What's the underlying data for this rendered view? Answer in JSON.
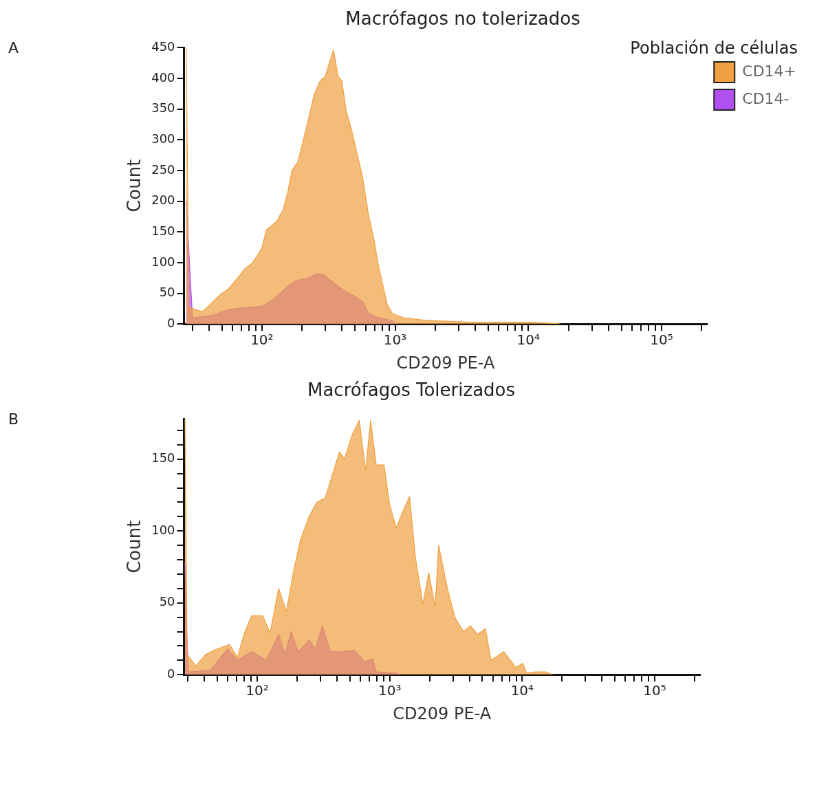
{
  "chart_data": [
    {
      "type": "area",
      "title": "Macrófagos no tolerizados",
      "annotations": [
        "A"
      ],
      "xlabel": "CD209 PE-A",
      "ylabel": "Count",
      "log": "x",
      "legend": "top right",
      "legend_title": "Población de células",
      "xlim": [
        26,
        220000
      ],
      "xticks": [
        {
          "value": 30,
          "label": null
        },
        {
          "value": 40,
          "label": null
        },
        {
          "value": 50,
          "label": null
        },
        {
          "value": 60,
          "label": null
        },
        {
          "value": 70,
          "label": null
        },
        {
          "value": 80,
          "label": null
        },
        {
          "value": 90,
          "label": null
        },
        {
          "value": 100,
          "label": "10²"
        },
        {
          "value": 200,
          "label": null
        },
        {
          "value": 300,
          "label": null
        },
        {
          "value": 400,
          "label": null
        },
        {
          "value": 500,
          "label": null
        },
        {
          "value": 600,
          "label": null
        },
        {
          "value": 700,
          "label": null
        },
        {
          "value": 800,
          "label": null
        },
        {
          "value": 900,
          "label": null
        },
        {
          "value": 1000,
          "label": "10³"
        },
        {
          "value": 2000,
          "label": null
        },
        {
          "value": 3000,
          "label": null
        },
        {
          "value": 4000,
          "label": null
        },
        {
          "value": 5000,
          "label": null
        },
        {
          "value": 6000,
          "label": null
        },
        {
          "value": 7000,
          "label": null
        },
        {
          "value": 8000,
          "label": null
        },
        {
          "value": 9000,
          "label": null
        },
        {
          "value": 10000,
          "label": "10⁴"
        },
        {
          "value": 20000,
          "label": null
        },
        {
          "value": 30000,
          "label": null
        },
        {
          "value": 40000,
          "label": null
        },
        {
          "value": 50000,
          "label": null
        },
        {
          "value": 60000,
          "label": null
        },
        {
          "value": 70000,
          "label": null
        },
        {
          "value": 80000,
          "label": null
        },
        {
          "value": 90000,
          "label": null
        },
        {
          "value": 100000,
          "label": "10⁵"
        },
        {
          "value": 200000,
          "label": null
        }
      ],
      "ylim": [
        0,
        450
      ],
      "yticks": [
        0,
        50,
        100,
        150,
        200,
        250,
        300,
        350,
        400,
        450
      ],
      "series": [
        {
          "name": "CD14+",
          "color": "#f0a040",
          "x": [
            27,
            28.3,
            35.6,
            44.3,
            49.2,
            56,
            61.2,
            67.9,
            75.3,
            84.6,
            91.4,
            100,
            108,
            118,
            129,
            144,
            157,
            168,
            186,
            203,
            222,
            247,
            274,
            299,
            319,
            345,
            373,
            398,
            430,
            470,
            514,
            570,
            632,
            692,
            748,
            809,
            874,
            955,
            1160,
            1710,
            3700,
            10400,
            15300,
            17400
          ],
          "values": [
            450,
            27,
            20,
            39,
            49,
            57,
            67,
            79,
            91,
            99,
            110,
            124,
            153,
            160,
            167,
            186,
            217,
            250,
            264,
            296,
            331,
            374,
            396,
            403,
            424,
            446,
            403,
            396,
            346,
            317,
            281,
            239,
            177,
            139,
            96,
            63,
            31,
            17,
            10,
            6,
            3,
            3,
            1,
            0
          ]
        },
        {
          "name": "CD14-",
          "color": "#b050f0",
          "x": [
            27,
            30.1,
            42.2,
            57.4,
            80.3,
            100,
            124,
            153,
            183,
            217,
            253,
            288,
            332,
            398,
            489,
            570,
            632,
            758,
            931,
            1020
          ],
          "values": [
            200,
            10,
            14,
            24,
            27,
            29,
            41,
            60,
            71,
            74,
            81,
            81,
            70,
            57,
            46,
            36,
            17,
            10,
            6,
            0
          ]
        }
      ]
    },
    {
      "type": "area",
      "title": "Macrófagos Tolerizados",
      "annotations": [
        "B"
      ],
      "xlabel": "CD209 PE-A",
      "ylabel": "Count",
      "log": "x",
      "legend": false,
      "xlim": [
        28,
        220000
      ],
      "xticks": [
        {
          "value": 30,
          "label": null
        },
        {
          "value": 40,
          "label": null
        },
        {
          "value": 50,
          "label": null
        },
        {
          "value": 60,
          "label": null
        },
        {
          "value": 70,
          "label": null
        },
        {
          "value": 80,
          "label": null
        },
        {
          "value": 90,
          "label": null
        },
        {
          "value": 100,
          "label": "10²"
        },
        {
          "value": 200,
          "label": null
        },
        {
          "value": 300,
          "label": null
        },
        {
          "value": 400,
          "label": null
        },
        {
          "value": 500,
          "label": null
        },
        {
          "value": 600,
          "label": null
        },
        {
          "value": 700,
          "label": null
        },
        {
          "value": 800,
          "label": null
        },
        {
          "value": 900,
          "label": null
        },
        {
          "value": 1000,
          "label": "10³"
        },
        {
          "value": 2000,
          "label": null
        },
        {
          "value": 3000,
          "label": null
        },
        {
          "value": 4000,
          "label": null
        },
        {
          "value": 5000,
          "label": null
        },
        {
          "value": 6000,
          "label": null
        },
        {
          "value": 7000,
          "label": null
        },
        {
          "value": 8000,
          "label": null
        },
        {
          "value": 9000,
          "label": null
        },
        {
          "value": 10000,
          "label": "10⁴"
        },
        {
          "value": 20000,
          "label": null
        },
        {
          "value": 30000,
          "label": null
        },
        {
          "value": 40000,
          "label": null
        },
        {
          "value": 50000,
          "label": null
        },
        {
          "value": 60000,
          "label": null
        },
        {
          "value": 70000,
          "label": null
        },
        {
          "value": 80000,
          "label": null
        },
        {
          "value": 90000,
          "label": null
        },
        {
          "value": 100000,
          "label": "10⁵"
        },
        {
          "value": 200000,
          "label": null
        }
      ],
      "ylim": [
        0,
        178
      ],
      "yticks": [
        0,
        {
          "value": 10,
          "label": null
        },
        {
          "value": 20,
          "label": null
        },
        {
          "value": 30,
          "label": null
        },
        {
          "value": 40,
          "label": null
        },
        50,
        {
          "value": 60,
          "label": null
        },
        {
          "value": 70,
          "label": null
        },
        {
          "value": 80,
          "label": null
        },
        {
          "value": 90,
          "label": null
        },
        100,
        {
          "value": 110,
          "label": null
        },
        {
          "value": 120,
          "label": null
        },
        {
          "value": 130,
          "label": null
        },
        {
          "value": 140,
          "label": null
        },
        150,
        {
          "value": 160,
          "label": null
        },
        {
          "value": 170,
          "label": null
        }
      ],
      "series": [
        {
          "color": "#f0a040",
          "x": [
            28.5,
            29.6,
            34.3,
            40.7,
            47.2,
            61.8,
            70.8,
            80.1,
            90.6,
            110,
            125,
            145,
            166,
            187,
            212,
            246,
            281,
            326,
            369,
            417,
            455,
            521,
            589,
            658,
            717,
            791,
            906,
            1000,
            1120,
            1260,
            1410,
            1560,
            1780,
            1970,
            2200,
            2340,
            2710,
            3100,
            3600,
            4070,
            4600,
            5270,
            5820,
            7260,
            8950,
            10100,
            10800,
            12500,
            15000,
            17000
          ],
          "values": [
            178,
            14,
            6,
            14,
            17,
            21,
            12,
            29,
            41,
            41,
            29,
            60,
            44,
            71,
            94,
            110,
            120,
            123,
            139,
            155,
            150,
            167,
            177,
            142,
            177,
            146,
            146,
            118,
            102,
            114,
            124,
            82,
            49,
            71,
            47,
            90,
            61,
            40,
            30,
            34,
            28,
            32,
            10,
            16,
            5,
            8,
            1,
            2,
            2,
            0
          ]
        },
        {
          "color": "#b050f0",
          "x": [
            28.5,
            29,
            30.3,
            44.3,
            59.7,
            70.8,
            90.6,
            117,
            145,
            162,
            180,
            204,
            246,
            275,
            310,
            355,
            438,
            541,
            643,
            744,
            791,
            1120,
            1190
          ],
          "values": [
            78,
            40,
            2,
            3,
            18,
            10,
            16,
            10,
            28,
            14,
            30,
            16,
            24,
            18,
            34,
            16,
            16,
            17,
            9,
            11,
            2,
            1,
            0
          ]
        }
      ]
    }
  ]
}
